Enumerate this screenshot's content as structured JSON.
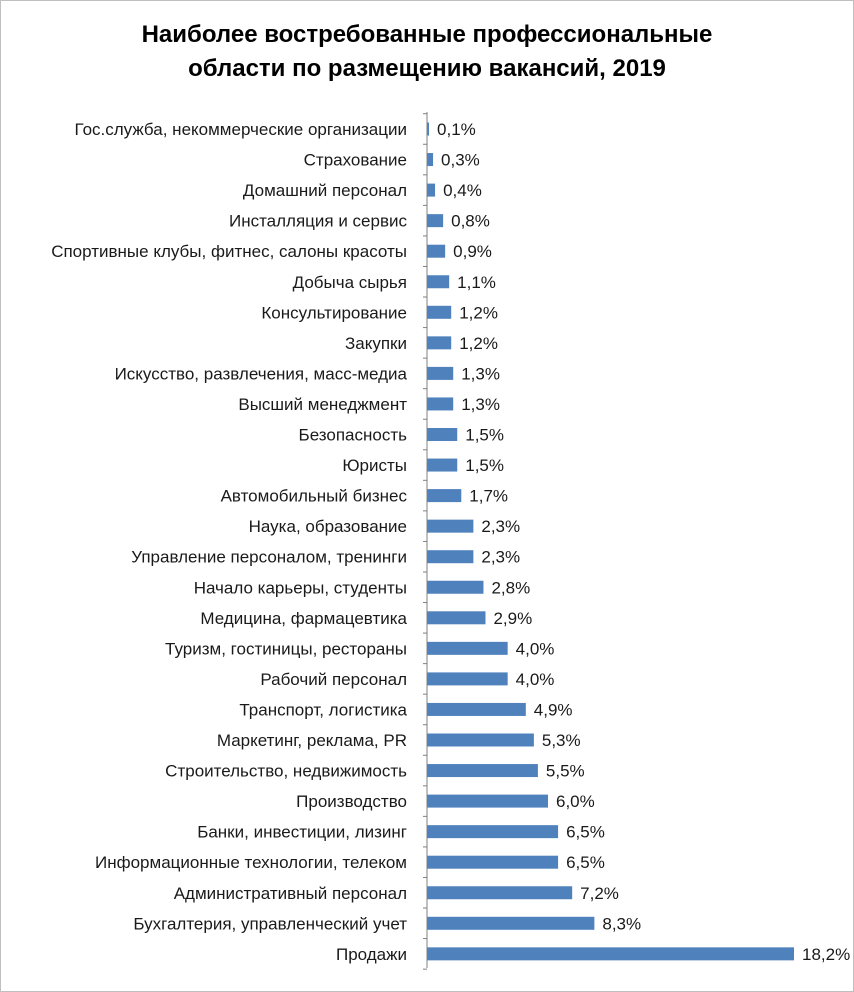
{
  "chart_data": {
    "type": "bar",
    "orientation": "horizontal",
    "title_lines": [
      "Наиболее востребованные профессиональные",
      "области по размещению вакансий, 2019"
    ],
    "categories": [
      "Гос.служба, некоммерческие организации",
      "Страхование",
      "Домашний персонал",
      "Инсталляция и сервис",
      "Спортивные клубы, фитнес, салоны красоты",
      "Добыча сырья",
      "Консультирование",
      "Закупки",
      "Искусство, развлечения, масс-медиа",
      "Высший менеджмент",
      "Безопасность",
      "Юристы",
      "Автомобильный бизнес",
      "Наука, образование",
      "Управление персоналом, тренинги",
      "Начало карьеры, студенты",
      "Медицина, фармацевтика",
      "Туризм, гостиницы, рестораны",
      "Рабочий персонал",
      "Транспорт, логистика",
      "Маркетинг, реклама, PR",
      "Строительство, недвижимость",
      "Производство",
      "Банки, инвестиции, лизинг",
      "Информационные технологии, телеком",
      "Административный персонал",
      "Бухгалтерия, управленческий учет",
      "Продажи"
    ],
    "values": [
      0.1,
      0.3,
      0.4,
      0.8,
      0.9,
      1.1,
      1.2,
      1.2,
      1.3,
      1.3,
      1.5,
      1.5,
      1.7,
      2.3,
      2.3,
      2.8,
      2.9,
      4.0,
      4.0,
      4.9,
      5.3,
      5.5,
      6.0,
      6.5,
      6.5,
      7.2,
      8.3,
      18.2
    ],
    "value_labels": [
      "0,1%",
      "0,3%",
      "0,4%",
      "0,8%",
      "0,9%",
      "1,1%",
      "1,2%",
      "1,2%",
      "1,3%",
      "1,3%",
      "1,5%",
      "1,5%",
      "1,7%",
      "2,3%",
      "2,3%",
      "2,8%",
      "2,9%",
      "4,0%",
      "4,0%",
      "4,9%",
      "5,3%",
      "5,5%",
      "6,0%",
      "6,5%",
      "6,5%",
      "7,2%",
      "8,3%",
      "18,2%"
    ],
    "unit": "%",
    "xlim": [
      0,
      18.2
    ],
    "xlabel": "",
    "ylabel": "",
    "grid": false,
    "legend": "none",
    "bar_color": "#4f81bd",
    "axis_color": "#808080"
  }
}
